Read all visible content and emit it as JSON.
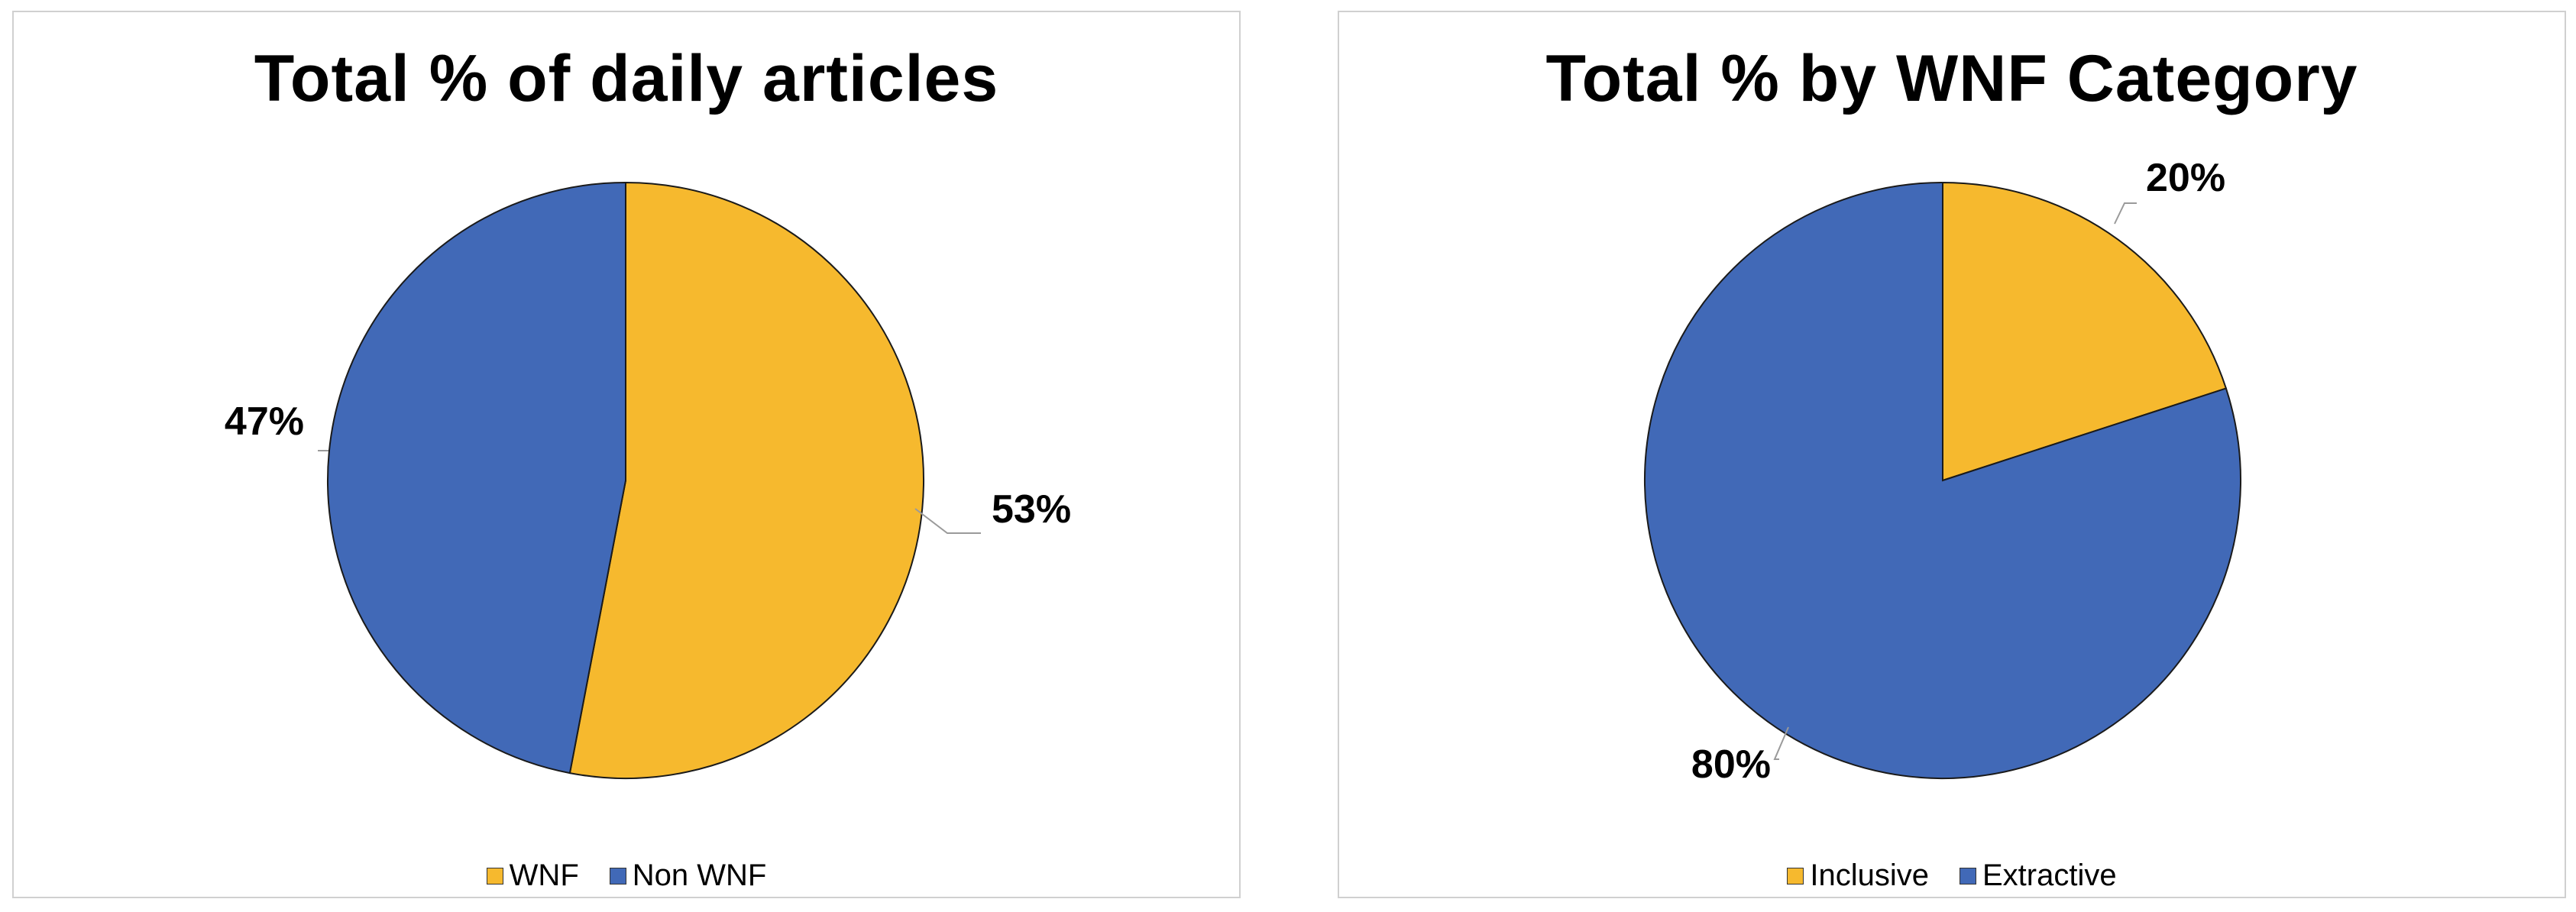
{
  "chart_data": [
    {
      "type": "pie",
      "title": "Total % of daily articles",
      "categories": [
        "WNF",
        "Non WNF"
      ],
      "values": [
        53,
        47
      ],
      "labels": [
        "53%",
        "47%"
      ],
      "colors": [
        "#F6B92E",
        "#4169B7"
      ],
      "legend_position": "bottom",
      "start_angle": "top, clockwise"
    },
    {
      "type": "pie",
      "title": "Total % by WNF Category",
      "categories": [
        "Inclusive",
        "Extractive"
      ],
      "values": [
        20,
        80
      ],
      "labels": [
        "20%",
        "80%"
      ],
      "colors": [
        "#F6B92E",
        "#4169B7"
      ],
      "legend_position": "bottom",
      "start_angle": "top, clockwise"
    }
  ]
}
